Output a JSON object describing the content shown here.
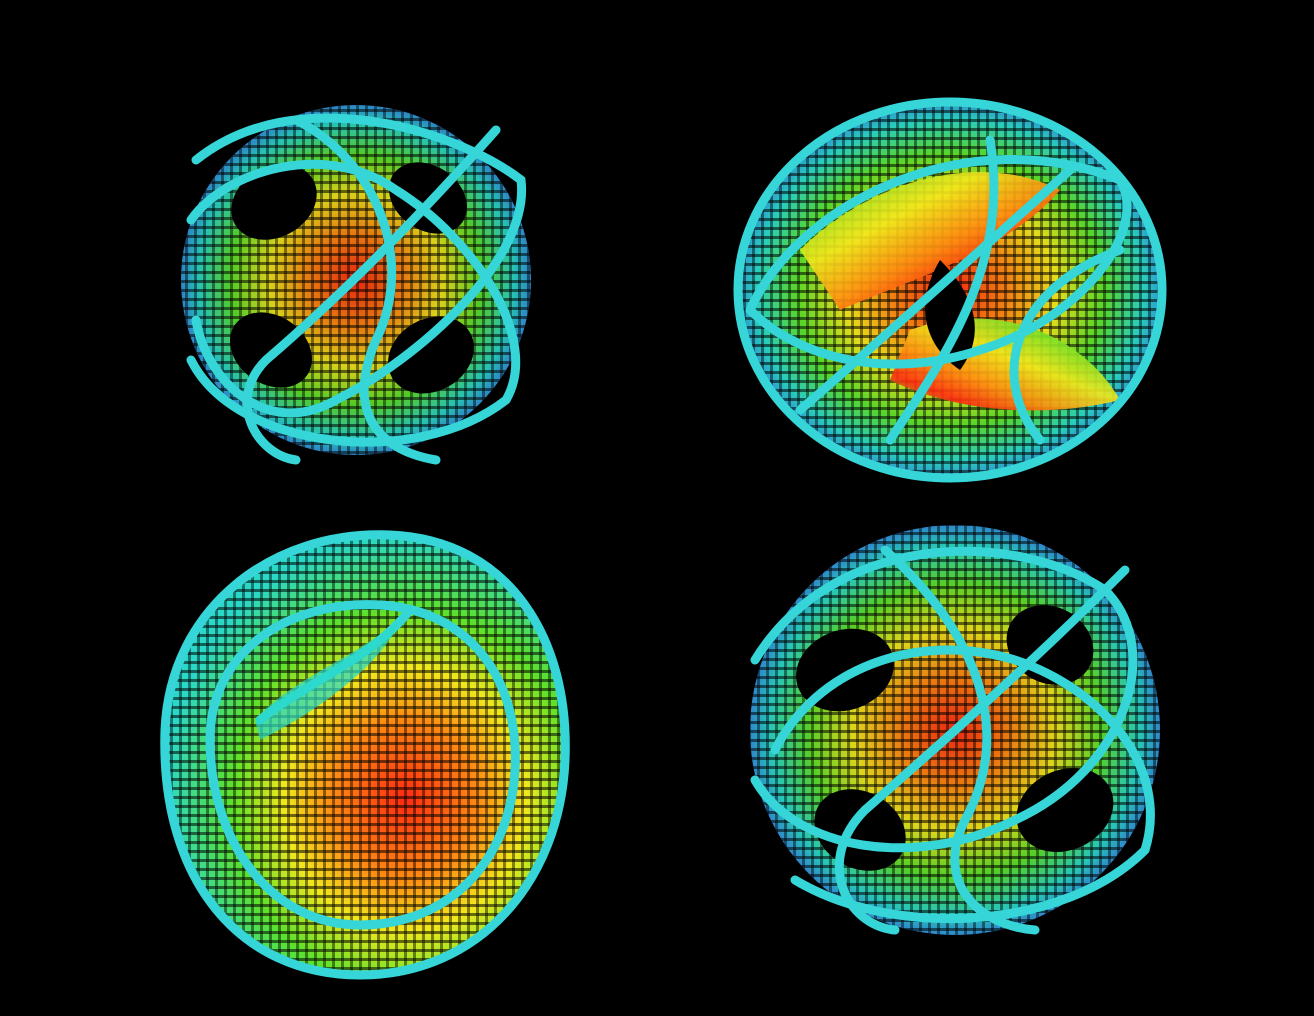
{
  "scene": {
    "background_color": "#000000",
    "figures": [
      {
        "name": "figure-top-left",
        "kind": "open-knot-lattice",
        "rim_color": "#36d6d8"
      },
      {
        "name": "figure-top-right",
        "kind": "swirl-torus-lattice",
        "rim_color": "#36d6d8"
      },
      {
        "name": "figure-bottom-left",
        "kind": "bowl-lattice",
        "rim_color": "#36d6d8"
      },
      {
        "name": "figure-bottom-right",
        "kind": "open-knot-lattice",
        "rim_color": "#36d6d8"
      }
    ],
    "palette": {
      "rim": "#36d6d8",
      "red": "#ff2a10",
      "orange": "#ff8a10",
      "yellow": "#f2e81c",
      "green": "#5ce12a",
      "cyan": "#2ad8c8",
      "blue": "#3a4ef0",
      "violet": "#6a22d8"
    }
  }
}
